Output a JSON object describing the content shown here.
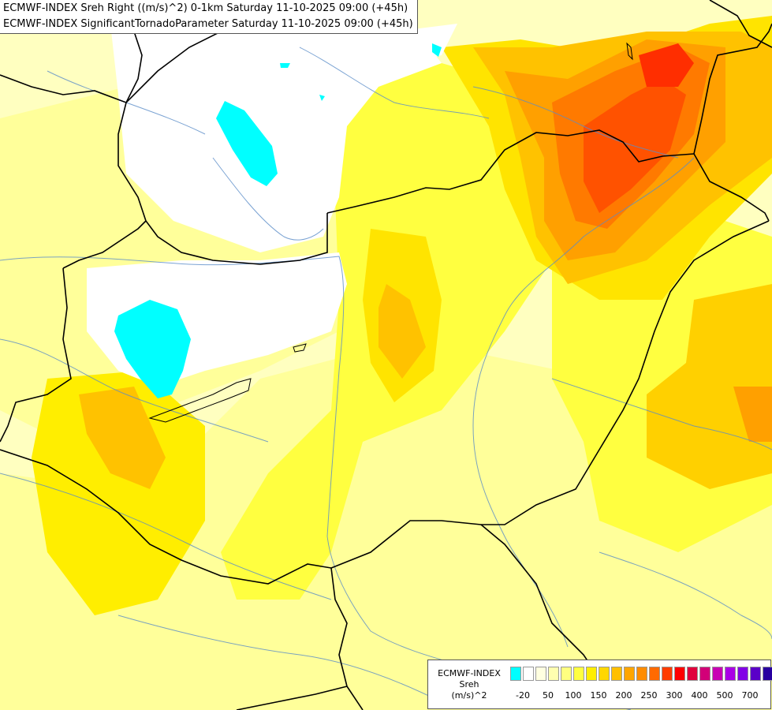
{
  "header": {
    "line1": "ECMWF-INDEX Sreh Right ((m/s)^2) 0-1km Saturday 11-10-2025 09:00 (+45h)",
    "line2": "ECMWF-INDEX SignificantTornadoParameter Saturday 11-10-2025 09:00 (+45h)"
  },
  "legend": {
    "line1": "ECMWF-INDEX",
    "line2": "Sreh",
    "line3": "(m/s)^2",
    "colors": [
      "#00ffff",
      "#ffffff",
      "#ffffe0",
      "#ffffb0",
      "#ffff80",
      "#ffff40",
      "#ffee00",
      "#ffd700",
      "#ffbf00",
      "#ffa500",
      "#ff8c00",
      "#ff6a00",
      "#ff3c00",
      "#ff0000",
      "#e0003c",
      "#d20078",
      "#c800b4",
      "#aa00e6",
      "#8200e6",
      "#5a00c8",
      "#2800a0"
    ],
    "ticks": [
      "-20",
      "50",
      "100",
      "150",
      "200",
      "250",
      "300",
      "400",
      "500",
      "700"
    ]
  },
  "map": {
    "base_color": "#ffffc0",
    "region_colors": {
      "white": "#ffffff",
      "cyan": "#00ffff",
      "light_yellow": "#ffff9a",
      "yellow": "#ffff40",
      "gold": "#ffe400",
      "orange_light": "#ffc200",
      "orange": "#ffa000",
      "dark_orange": "#ff7a00",
      "red_orange": "#ff5200",
      "red": "#ff2e00"
    }
  }
}
